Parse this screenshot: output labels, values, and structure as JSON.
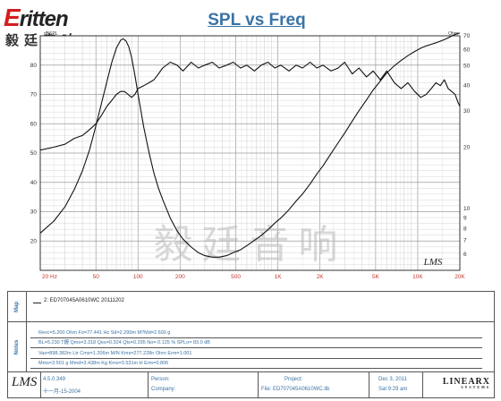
{
  "brand": {
    "logo_en": "Eritten",
    "logo_cn": "毅廷音响",
    "watermark": "毅廷音响"
  },
  "title": "SPL vs Freq",
  "chart_data": {
    "type": "line",
    "title": "SPL vs Freq",
    "left_axis_unit": "dBSPL",
    "right_axis_unit": "Ohm",
    "x_scale": "log",
    "xlim": [
      20,
      20000
    ],
    "ylim_left": [
      10,
      90
    ],
    "ylim_right_ohm_log": [
      5,
      70
    ],
    "x_tick_labels": [
      "20 Hz",
      "50",
      "100",
      "200",
      "500",
      "1K",
      "2K",
      "5K",
      "10K",
      "20K"
    ],
    "x_tick_values": [
      20,
      50,
      100,
      200,
      500,
      1000,
      2000,
      5000,
      10000,
      20000
    ],
    "left_tick_labels": [
      "20",
      "30",
      "40",
      "50",
      "60",
      "70",
      "80"
    ],
    "left_tick_values": [
      20,
      30,
      40,
      50,
      60,
      70,
      80
    ],
    "right_tick_labels": [
      "70",
      "60",
      "50",
      "40",
      "30",
      "20",
      "10",
      "9",
      "8",
      "7",
      "6"
    ],
    "right_tick_values": [
      70,
      60,
      50,
      40,
      30,
      20,
      10,
      9,
      8,
      7,
      6
    ],
    "grid": true,
    "series": [
      {
        "axis": "left",
        "x": [
          20,
          25,
          30,
          35,
          40,
          45,
          50,
          55,
          60,
          65,
          70,
          75,
          80,
          85,
          90,
          95,
          100,
          110,
          120,
          130,
          140,
          150,
          170,
          190,
          210,
          240,
          270,
          300,
          340,
          380,
          430,
          480,
          540,
          600,
          680,
          760,
          850,
          950,
          1050,
          1200,
          1350,
          1500,
          1700,
          1900,
          2100,
          2400,
          2700,
          3000,
          3400,
          3800,
          4300,
          4800,
          5400,
          6000,
          6800,
          7600,
          8500,
          9500,
          10500,
          11500,
          12500,
          13500,
          14500,
          15500,
          16500,
          17500,
          18500,
          19500,
          20000
        ],
        "y": [
          51,
          52,
          53,
          55,
          56,
          58,
          60,
          63,
          66,
          68,
          70,
          71,
          71,
          70,
          69,
          70,
          72,
          73,
          74,
          75,
          77,
          79,
          81,
          80,
          78,
          81,
          79,
          80,
          81,
          79,
          80,
          81,
          79,
          80,
          78,
          80,
          81,
          79,
          80,
          78,
          80,
          79,
          81,
          79,
          80,
          78,
          79,
          81,
          77,
          79,
          76,
          78,
          75,
          78,
          74,
          72,
          74,
          71,
          69,
          70,
          72,
          74,
          73,
          75,
          72,
          71,
          70,
          67,
          66
        ]
      },
      {
        "axis": "right_ohm",
        "x": [
          20,
          25,
          30,
          35,
          40,
          45,
          50,
          55,
          60,
          65,
          70,
          75,
          78,
          82,
          86,
          90,
          95,
          100,
          110,
          120,
          130,
          140,
          150,
          170,
          190,
          210,
          240,
          270,
          300,
          340,
          380,
          430,
          480,
          540,
          600,
          680,
          760,
          850,
          950,
          1050,
          1200,
          1350,
          1500,
          1700,
          1900,
          2100,
          2400,
          2700,
          3000,
          3400,
          3800,
          4300,
          4800,
          5400,
          6000,
          6800,
          7600,
          8500,
          9500,
          10500,
          11500,
          12500,
          13500,
          14500,
          15500,
          16500,
          17500,
          18500,
          19500,
          20000
        ],
        "y": [
          7.6,
          8.7,
          10.2,
          12.4,
          15.3,
          19.4,
          25.4,
          33.1,
          42.0,
          52.0,
          61.0,
          66.5,
          67.7,
          66.1,
          61.8,
          54.9,
          44.9,
          36.3,
          25.0,
          18.7,
          14.9,
          12.6,
          11.1,
          9.0,
          7.8,
          7.1,
          6.5,
          6.1,
          5.9,
          5.8,
          5.8,
          5.9,
          6.1,
          6.3,
          6.6,
          7.0,
          7.4,
          7.9,
          8.5,
          9.0,
          9.9,
          10.9,
          11.8,
          13.2,
          14.8,
          16.2,
          18.6,
          21.0,
          23.4,
          26.8,
          30.1,
          34.0,
          38.0,
          42.1,
          46.1,
          50.0,
          53.0,
          56.0,
          58.7,
          60.9,
          62.5,
          63.6,
          64.7,
          65.9,
          67.1,
          68.4,
          69.8,
          71.1,
          71.9,
          72.2
        ]
      }
    ]
  },
  "panels": {
    "map": {
      "label": "Map",
      "legend": "2: ED707045A0610WC 20111202"
    },
    "notes": {
      "label": "Notes",
      "lines": [
        "Revc=5.200 Ohm  Fo=77.441 Hz  Sd=2.290m M?Md=2.600 g",
        "BL=5.230 T鏝  Qms=3.318  Qes=0.324  Qts=0.295  No= 0.125 %  SPLo= 83.0 dB",
        "Vas=898.382m Ltr  Cms=1.206m M/N  Kms=277.228n Ohm  Erm=1.001",
        "Mms=3.501 g  Mmd=3.438m Kg  Kms=3.531m H  Erm=0.806"
      ]
    }
  },
  "footer": {
    "app_logo": "LMS",
    "version": "4.5.0.349",
    "date_cn": "十一月-15-2004",
    "person_label": "Person:",
    "company_label": "Company:",
    "project_label": "Project:",
    "file_label": "File: ED707045A0610WC.lib",
    "date": "Dec 3, 2011",
    "time": "Sat 9:29 am",
    "linearx": "LINEARX",
    "linearx_sub": "SYSTEMS"
  },
  "chart_badge": "LMS"
}
